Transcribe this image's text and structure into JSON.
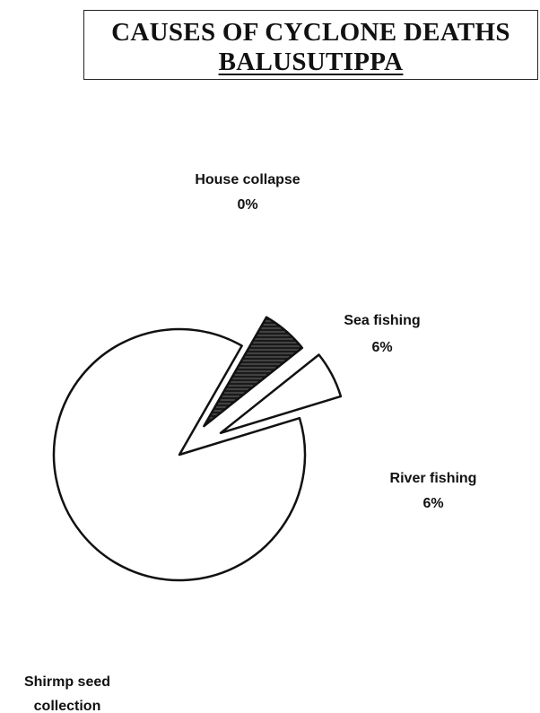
{
  "chart_data": {
    "type": "pie",
    "title": "CAUSES OF CYCLONE DEATHS",
    "subtitle": "BALUSUTIPPA",
    "slices": [
      {
        "label": "House collapse",
        "percent_label": "0%",
        "value": 0,
        "fill": "#ffffff"
      },
      {
        "label": "Sea fishing",
        "percent_label": "6%",
        "value": 6,
        "fill": "#1a1a1a"
      },
      {
        "label": "River fishing",
        "percent_label": "6%",
        "value": 6,
        "fill": "#ffffff"
      },
      {
        "label": "Shirmp seed collection",
        "percent_label": "",
        "value": 88,
        "fill": "#ffffff"
      }
    ],
    "label_lines": {
      "house_collapse": [
        "House collapse",
        "0%"
      ],
      "sea_fishing": [
        "Sea fishing",
        "6%"
      ],
      "river_fishing": [
        "River fishing",
        "6%"
      ],
      "shrimp_seed": [
        "Shirmp seed",
        "collection"
      ]
    },
    "legend": "none"
  }
}
